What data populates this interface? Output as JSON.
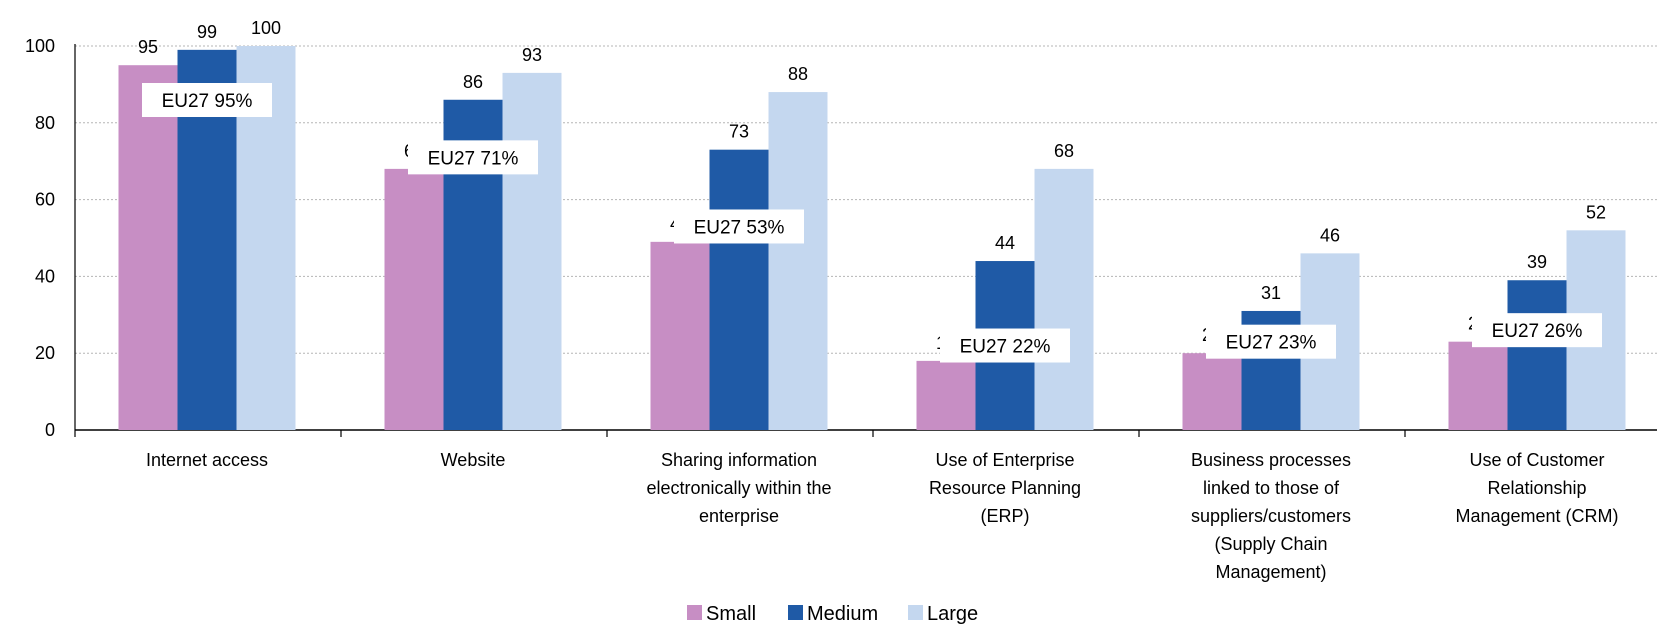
{
  "chart_data": {
    "type": "bar",
    "categories": [
      [
        "Internet access"
      ],
      [
        "Website"
      ],
      [
        "Sharing information",
        "electronically within the",
        "enterprise"
      ],
      [
        "Use of Enterprise",
        "Resource Planning",
        "(ERP)"
      ],
      [
        "Business processes",
        "linked to those of",
        "suppliers/customers",
        "(Supply Chain",
        "Management)"
      ],
      [
        "Use of Customer",
        "Relationship",
        "Management (CRM)"
      ]
    ],
    "series": [
      {
        "name": "Small",
        "color": "#c78ec4",
        "values": [
          95,
          68,
          49,
          18,
          20,
          23
        ]
      },
      {
        "name": "Medium",
        "color": "#1f5aa6",
        "values": [
          99,
          86,
          73,
          44,
          31,
          39
        ]
      },
      {
        "name": "Large",
        "color": "#c4d7ef",
        "values": [
          100,
          93,
          88,
          68,
          46,
          52
        ]
      }
    ],
    "eu27_labels": [
      "EU27 95%",
      "EU27 71%",
      "EU27 53%",
      "EU27 22%",
      "EU27 23%",
      "EU27 26%"
    ],
    "eu27_values": [
      95,
      71,
      53,
      22,
      23,
      26
    ],
    "title": "",
    "xlabel": "",
    "ylabel": "",
    "ylim": [
      0,
      100
    ],
    "yticks": [
      0,
      20,
      40,
      60,
      80,
      100
    ],
    "grid": true,
    "legend_position": "bottom-center"
  }
}
